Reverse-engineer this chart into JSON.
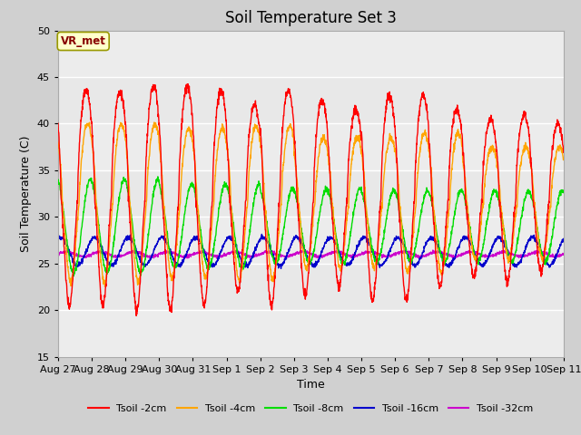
{
  "title": "Soil Temperature Set 3",
  "xlabel": "Time",
  "ylabel": "Soil Temperature (C)",
  "ylim": [
    15,
    50
  ],
  "yticks": [
    15,
    20,
    25,
    30,
    35,
    40,
    45,
    50
  ],
  "plot_bg_color": "#e8e8e8",
  "fig_bg_color": "#d0d0d0",
  "series_colors": {
    "2cm": "#ff0000",
    "4cm": "#ffa500",
    "8cm": "#00dd00",
    "16cm": "#0000cc",
    "32cm": "#cc00cc"
  },
  "legend_labels": [
    "Tsoil -2cm",
    "Tsoil -4cm",
    "Tsoil -8cm",
    "Tsoil -16cm",
    "Tsoil -32cm"
  ],
  "vr_met_text": "VR_met",
  "vr_met_bg": "#ffffcc",
  "vr_met_border": "#999900",
  "vr_met_text_color": "#880000",
  "x_tick_labels": [
    "Aug 27",
    "Aug 28",
    "Aug 29",
    "Aug 30",
    "Aug 31",
    "Sep 1",
    "Sep 2",
    "Sep 3",
    "Sep 4",
    "Sep 5",
    "Sep 6",
    "Sep 7",
    "Sep 8",
    "Sep 9",
    "Sep 10",
    "Sep 11"
  ],
  "num_days": 15,
  "ppd": 144
}
